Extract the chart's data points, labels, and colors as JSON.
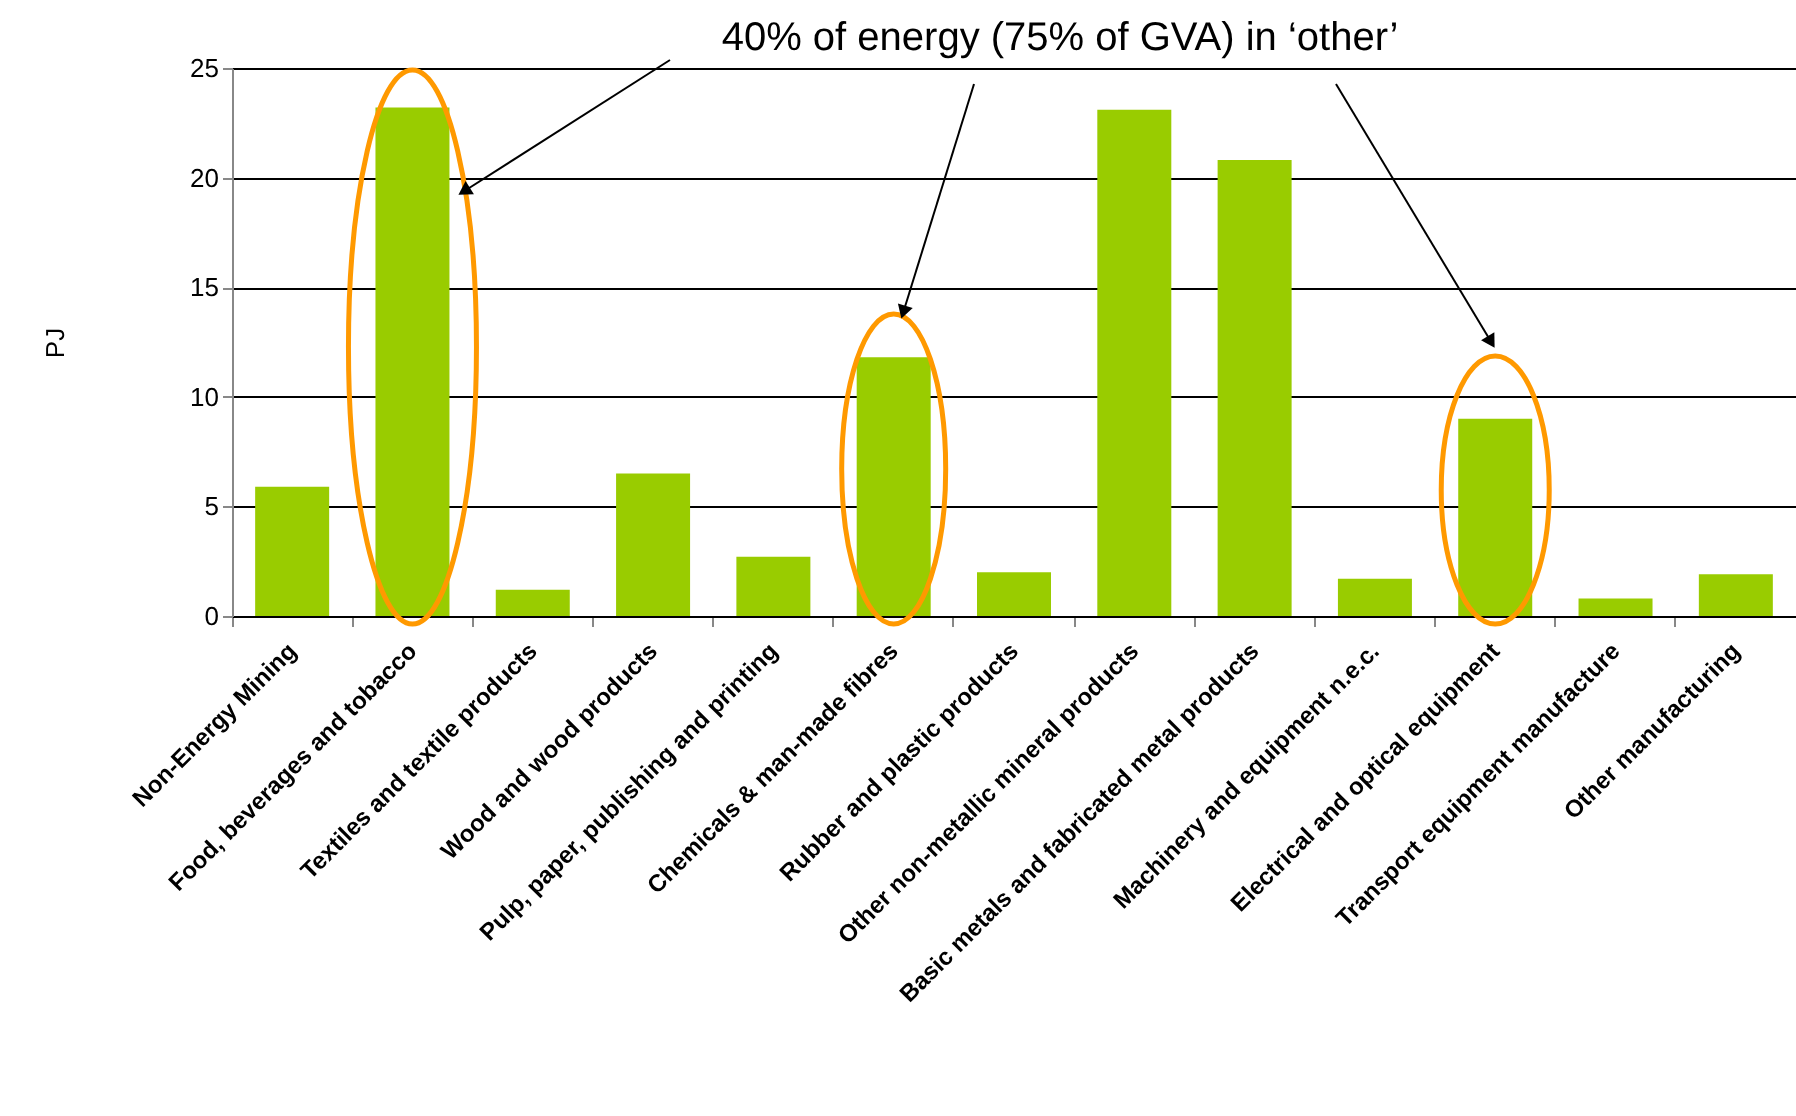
{
  "chart_data": {
    "type": "bar",
    "ylabel": "PJ",
    "categories": [
      "Non-Energy Mining",
      "Food, beverages and tobacco",
      "Textiles and textile products",
      "Wood and wood products",
      "Pulp, paper, publishing and printing",
      "Chemicals & man-made fibres",
      "Rubber and plastic products",
      "Other non-metallic mineral products",
      "Basic metals and fabricated metal products",
      "Machinery and equipment n.e.c.",
      "Electrical and optical equipment",
      "Transport equipment manufacture",
      "Other manufacturing"
    ],
    "values": [
      5.9,
      23.2,
      1.2,
      6.5,
      2.7,
      11.8,
      2.0,
      23.1,
      20.8,
      1.7,
      9.0,
      0.8,
      1.9
    ],
    "color": "#99cc00",
    "ylim": [
      0,
      25
    ],
    "yticks": [
      0,
      5,
      10,
      15,
      20,
      25
    ],
    "grid": "y",
    "annotations": [
      "40% of energy (75% of GVA) in ‘other’"
    ]
  }
}
